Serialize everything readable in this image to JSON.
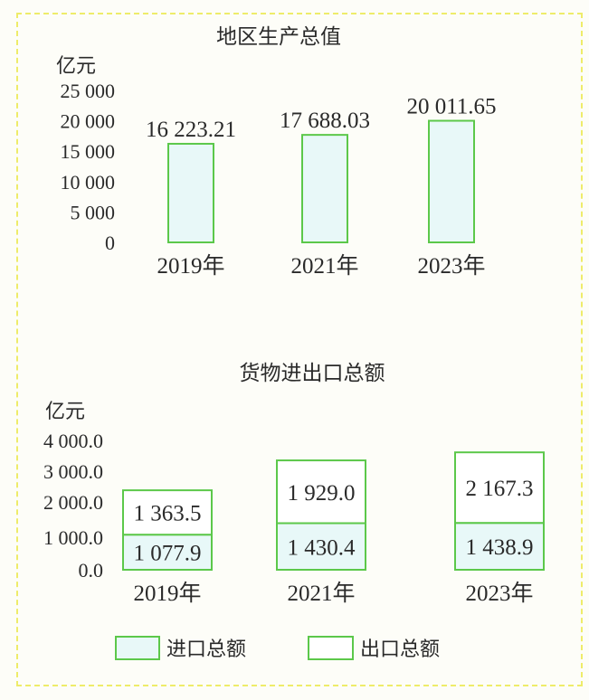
{
  "colors": {
    "bar_stroke": "#5cc84a",
    "import_fill": "#e8f8f8",
    "export_fill": "#ffffff",
    "border": "#eeec6a"
  },
  "chart_data": [
    {
      "type": "bar",
      "title": "地区生产总值",
      "ylabel": "亿元",
      "ylim": [
        0,
        25000
      ],
      "yticks": [
        "25 000",
        "20 000",
        "15 000",
        "10 000",
        "5 000",
        "0"
      ],
      "ytick_values": [
        25000,
        20000,
        15000,
        10000,
        5000,
        0
      ],
      "categories": [
        "2019年",
        "2021年",
        "2023年"
      ],
      "values": [
        16223.21,
        17688.03,
        20011.65
      ],
      "value_labels": [
        "16 223.21",
        "17 688.03",
        "20 011.65"
      ]
    },
    {
      "type": "bar",
      "stacked": true,
      "title": "货物进出口总额",
      "ylabel": "亿元",
      "ylim": [
        0,
        4000
      ],
      "yticks": [
        "4 000.0",
        "3 000.0",
        "2 000.0",
        "1 000.0",
        "0.0"
      ],
      "ytick_values": [
        4000,
        3000,
        2000,
        1000,
        0
      ],
      "categories": [
        "2019年",
        "2021年",
        "2023年"
      ],
      "series": [
        {
          "name": "进口总额",
          "values": [
            1077.9,
            1430.4,
            1438.9
          ],
          "value_labels": [
            "1 077.9",
            "1 430.4",
            "1 438.9"
          ]
        },
        {
          "name": "出口总额",
          "values": [
            1363.5,
            1929.0,
            2167.3
          ],
          "value_labels": [
            "1 363.5",
            "1 929.0",
            "2 167.3"
          ]
        }
      ],
      "legend": "bottom"
    }
  ]
}
